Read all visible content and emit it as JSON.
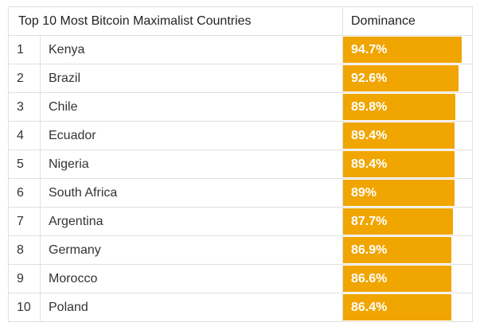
{
  "table": {
    "title": "Top 10 Most Bitcoin Maximalist Countries",
    "value_header": "Dominance"
  },
  "colors": {
    "bar": "#f0a500",
    "bar_text": "#ffffff",
    "grid": "#e0e0e0"
  },
  "chart_data": {
    "type": "bar",
    "title": "Top 10 Most Bitcoin Maximalist Countries",
    "ylabel": "Dominance",
    "ylim": [
      0,
      100
    ],
    "ranks": [
      "1",
      "2",
      "3",
      "4",
      "5",
      "6",
      "7",
      "8",
      "9",
      "10"
    ],
    "categories": [
      "Kenya",
      "Brazil",
      "Chile",
      "Ecuador",
      "Nigeria",
      "South Africa",
      "Argentina",
      "Germany",
      "Morocco",
      "Poland"
    ],
    "values": [
      94.7,
      92.6,
      89.8,
      89.4,
      89.4,
      89,
      87.7,
      86.9,
      86.6,
      86.4
    ],
    "labels": [
      "94.7%",
      "92.6%",
      "89.8%",
      "89.4%",
      "89.4%",
      "89%",
      "87.7%",
      "86.9%",
      "86.6%",
      "86.4%"
    ]
  }
}
